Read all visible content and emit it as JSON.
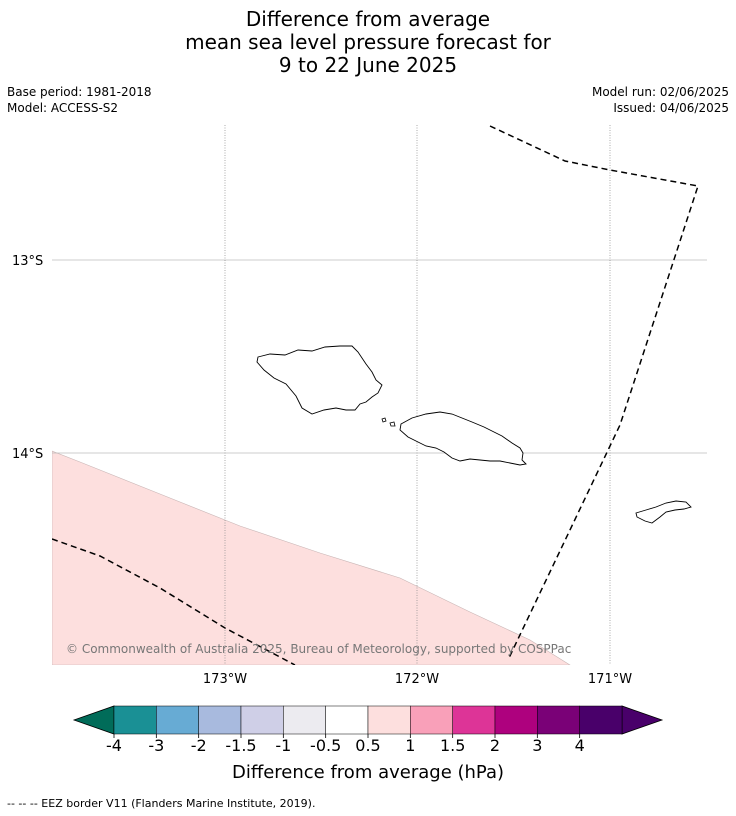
{
  "title": {
    "line1": "Difference from average",
    "line2": "mean sea level pressure forecast for",
    "line3": "9 to 22 June 2025"
  },
  "meta": {
    "base_period": "Base period: 1981-2018",
    "model": "Model: ACCESS-S2",
    "model_run": "Model run: 02/06/2025",
    "issued": "Issued: 04/06/2025"
  },
  "map": {
    "lat_labels": [
      "13°S",
      "14°S"
    ],
    "lon_labels": [
      "173°W",
      "172°W",
      "171°W"
    ],
    "copyright": "© Commonwealth of Australia 2025, Bureau of Meteorology, supported by COSPPac",
    "anomaly_fill_color": "#fddfde"
  },
  "colorbar": {
    "ticks": [
      "-4",
      "-3",
      "-2",
      "-1.5",
      "-1",
      "-0.5",
      "0.5",
      "1",
      "1.5",
      "2",
      "3",
      "4"
    ],
    "colors": [
      "#1a9095",
      "#67abd4",
      "#a8bade",
      "#cfcfe7",
      "#ecebf0",
      "#ffffff",
      "#fddfde",
      "#f9a0b9",
      "#dd3497",
      "#ae017e",
      "#7a0177",
      "#49006a"
    ],
    "under_color": "#016c59",
    "over_color": "#49006a",
    "label": "Difference from average (hPa)"
  },
  "footer": {
    "eez_legend": "--  --  -- EEZ border V11 (Flanders Marine Institute, 2019)."
  }
}
